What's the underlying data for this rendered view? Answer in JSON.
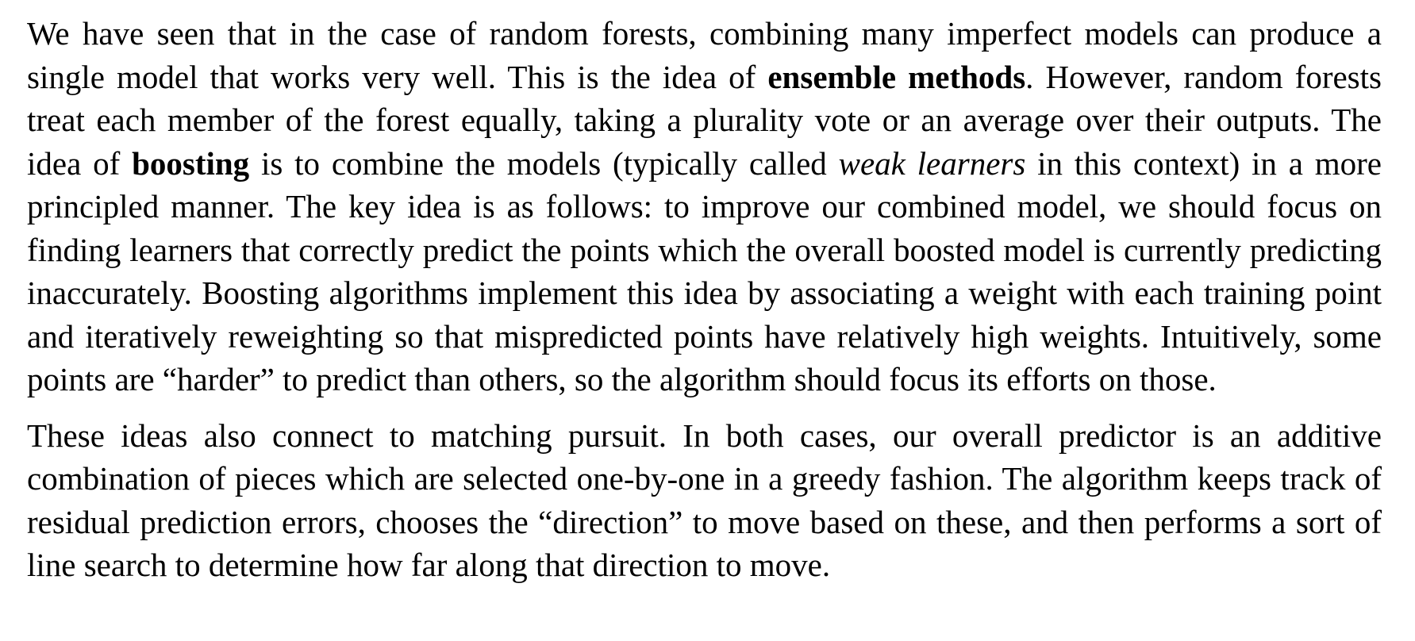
{
  "paragraphs": [
    {
      "runs": [
        {
          "text": "We have seen that in the case of random forests, combining many imperfect models can produce a single model that works very well. This is the idea of ",
          "style": "normal"
        },
        {
          "text": "ensemble methods",
          "style": "bold"
        },
        {
          "text": ". However, random forests treat each member of the forest equally, taking a plurality vote or an average over their outputs. The idea of ",
          "style": "normal"
        },
        {
          "text": "boosting",
          "style": "bold"
        },
        {
          "text": " is to combine the models (typically called ",
          "style": "normal"
        },
        {
          "text": "weak learners",
          "style": "italic"
        },
        {
          "text": " in this context) in a more principled manner. The key idea is as follows: to improve our combined model, we should focus on finding learners that correctly predict the points which the overall boosted model is currently predicting inaccurately. Boosting algorithms implement this idea by associating a weight with each training point and iteratively reweighting so that mispredicted points have relatively high weights. Intuitively, some points are “harder” to predict than others, so the algorithm should focus its efforts on those.",
          "style": "normal"
        }
      ]
    },
    {
      "runs": [
        {
          "text": "These ideas also connect to matching pursuit. In both cases, our overall predictor is an additive combination of pieces which are selected one-by-one in a greedy fashion. The algorithm keeps track of residual prediction errors, chooses the “direction” to move based on these, and then per­forms a sort of line search to determine how far along that direction to move.",
          "style": "normal"
        }
      ]
    }
  ]
}
